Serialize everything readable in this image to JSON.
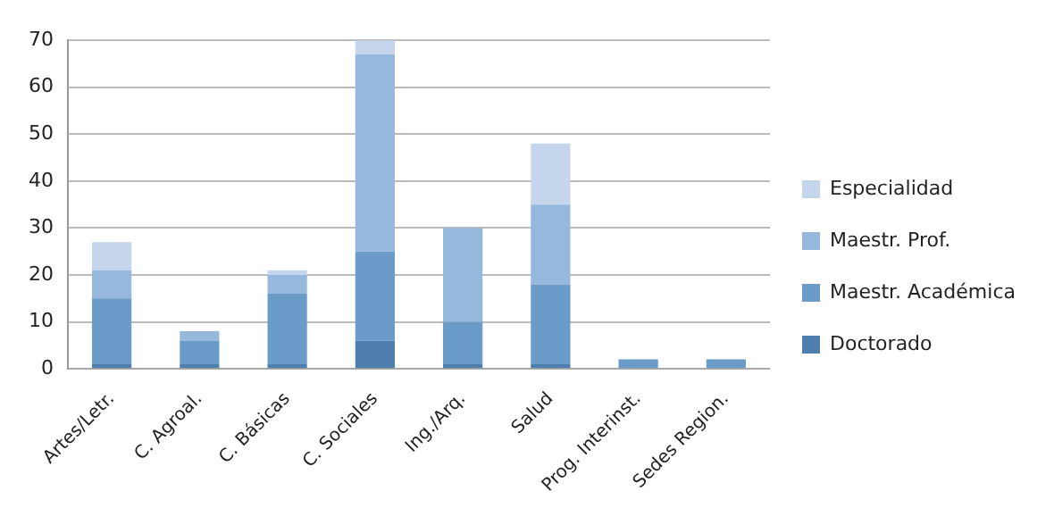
{
  "chart_data": {
    "type": "bar",
    "stacked": true,
    "categories": [
      "Artes/Letr.",
      "C. Agroal.",
      "C. Básicas",
      "C. Sociales",
      "Ing./Arq.",
      "Salud",
      "Prog. Interinst.",
      "Sedes Region."
    ],
    "series": [
      {
        "name": "Doctorado",
        "color": "#4f7fae",
        "values": [
          1,
          1,
          1,
          6,
          1,
          1,
          0,
          0
        ]
      },
      {
        "name": "Maestr. Académica",
        "color": "#6b9bc8",
        "values": [
          14,
          5,
          15,
          19,
          9,
          17,
          2,
          2
        ]
      },
      {
        "name": "Maestr. Prof.",
        "color": "#97b8dd",
        "values": [
          6,
          2,
          4,
          42,
          20,
          17,
          0,
          0
        ]
      },
      {
        "name": "Especialidad",
        "color": "#c5d6ec",
        "values": [
          6,
          0,
          1,
          3,
          0,
          13,
          0,
          0
        ]
      }
    ],
    "ylim": [
      0,
      70
    ],
    "yticks": [
      0,
      10,
      20,
      30,
      40,
      50,
      60,
      70
    ],
    "grid": "y",
    "legend": "right"
  }
}
